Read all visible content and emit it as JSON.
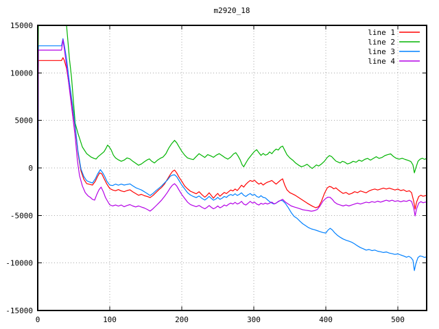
{
  "chart_data": {
    "type": "line",
    "title": "m2920_18",
    "xlabel": "",
    "ylabel": "",
    "xlim": [
      0,
      540
    ],
    "ylim": [
      -15000,
      15000
    ],
    "x_ticks": [
      0,
      100,
      200,
      300,
      400,
      500
    ],
    "y_ticks": [
      -15000,
      -10000,
      -5000,
      0,
      5000,
      10000,
      15000
    ],
    "grid": true,
    "legend_position": "top-right",
    "colors": {
      "background": "#ffffff",
      "axis": "#000000",
      "grid": "#a6a6a6",
      "text": "#000000"
    },
    "series": [
      {
        "name": "line 1",
        "color": "#ff0000",
        "points": [
          0,
          500,
          1,
          11300,
          33,
          11300,
          35,
          11600,
          37,
          11300,
          40,
          10500,
          44,
          8500,
          48,
          6500,
          52,
          4200,
          56,
          1500,
          60,
          -300,
          64,
          -1200,
          68,
          -1650,
          72,
          -1720,
          76,
          -1800,
          80,
          -1400,
          83,
          -900,
          86,
          -520,
          89,
          -620,
          92,
          -1100,
          96,
          -1700,
          100,
          -2160,
          104,
          -2320,
          108,
          -2400,
          112,
          -2280,
          116,
          -2420,
          120,
          -2500,
          124,
          -2380,
          128,
          -2300,
          132,
          -2520,
          136,
          -2700,
          140,
          -2880,
          144,
          -2780,
          148,
          -2920,
          152,
          -3000,
          156,
          -3120,
          160,
          -2900,
          164,
          -2600,
          168,
          -2300,
          172,
          -2050,
          176,
          -1700,
          180,
          -1200,
          184,
          -700,
          187,
          -380,
          190,
          -220,
          193,
          -520,
          196,
          -950,
          200,
          -1400,
          204,
          -1900,
          208,
          -2200,
          212,
          -2450,
          216,
          -2580,
          220,
          -2720,
          224,
          -2500,
          228,
          -2820,
          232,
          -3080,
          235,
          -2880,
          238,
          -2620,
          241,
          -2900,
          244,
          -3180,
          247,
          -2900,
          250,
          -2680,
          253,
          -2980,
          256,
          -2780,
          259,
          -2580,
          262,
          -2700,
          265,
          -2500,
          268,
          -2320,
          271,
          -2420,
          274,
          -2220,
          277,
          -2380,
          280,
          -2120,
          283,
          -1820,
          286,
          -2020,
          289,
          -1720,
          292,
          -1500,
          295,
          -1320,
          298,
          -1420,
          301,
          -1300,
          304,
          -1520,
          307,
          -1700,
          310,
          -1580,
          313,
          -1800,
          316,
          -1620,
          319,
          -1500,
          322,
          -1420,
          325,
          -1320,
          328,
          -1520,
          331,
          -1700,
          334,
          -1500,
          337,
          -1300,
          340,
          -1150,
          343,
          -1800,
          346,
          -2300,
          350,
          -2600,
          354,
          -2750,
          358,
          -2900,
          362,
          -3100,
          366,
          -3300,
          370,
          -3500,
          374,
          -3700,
          378,
          -3880,
          382,
          -4050,
          386,
          -4180,
          390,
          -4080,
          394,
          -3500,
          398,
          -2700,
          402,
          -2100,
          405,
          -1950,
          408,
          -2020,
          411,
          -2200,
          414,
          -2100,
          417,
          -2300,
          420,
          -2480,
          424,
          -2680,
          428,
          -2580,
          432,
          -2780,
          436,
          -2680,
          440,
          -2500,
          444,
          -2600,
          448,
          -2420,
          452,
          -2520,
          456,
          -2620,
          460,
          -2420,
          464,
          -2300,
          468,
          -2220,
          472,
          -2320,
          476,
          -2220,
          480,
          -2120,
          484,
          -2220,
          488,
          -2120,
          492,
          -2220,
          496,
          -2320,
          500,
          -2220,
          504,
          -2380,
          508,
          -2300,
          512,
          -2480,
          516,
          -2400,
          519,
          -2600,
          522,
          -3500,
          524,
          -4330,
          526,
          -3600,
          529,
          -3000,
          532,
          -2880,
          535,
          -2980,
          538,
          -2920,
          540,
          -2900
        ]
      },
      {
        "name": "line 2",
        "color": "#00b400",
        "points": [
          0,
          4500,
          1,
          15400,
          36,
          15400,
          40,
          15000,
          44,
          11500,
          47,
          9500,
          52,
          4700,
          56,
          3600,
          62,
          2200,
          68,
          1500,
          74,
          1150,
          78,
          1000,
          81,
          940,
          84,
          1200,
          88,
          1450,
          92,
          1700,
          95,
          2100,
          97,
          2400,
          99,
          2250,
          102,
          1900,
          105,
          1350,
          108,
          1050,
          112,
          850,
          116,
          700,
          120,
          820,
          124,
          1050,
          128,
          950,
          132,
          700,
          136,
          500,
          140,
          280,
          144,
          420,
          148,
          650,
          152,
          850,
          155,
          950,
          158,
          720,
          162,
          520,
          166,
          800,
          170,
          1000,
          174,
          1150,
          178,
          1500,
          182,
          2100,
          186,
          2550,
          190,
          2900,
          193,
          2650,
          196,
          2250,
          200,
          1750,
          204,
          1350,
          208,
          1050,
          212,
          950,
          216,
          880,
          220,
          1200,
          224,
          1500,
          228,
          1300,
          232,
          1100,
          236,
          1400,
          240,
          1280,
          244,
          1120,
          248,
          1350,
          252,
          1500,
          256,
          1300,
          260,
          1080,
          264,
          920,
          268,
          1150,
          272,
          1480,
          275,
          1600,
          278,
          1280,
          281,
          850,
          284,
          300,
          286,
          120,
          289,
          520,
          292,
          900,
          295,
          1200,
          298,
          1480,
          301,
          1750,
          304,
          1920,
          307,
          1600,
          310,
          1320,
          313,
          1520,
          316,
          1350,
          319,
          1430,
          322,
          1680,
          325,
          1500,
          328,
          1780,
          331,
          1980,
          334,
          1880,
          337,
          2180,
          340,
          2300,
          343,
          1850,
          346,
          1400,
          350,
          1050,
          354,
          820,
          358,
          520,
          362,
          300,
          366,
          120,
          370,
          220,
          374,
          380,
          378,
          120,
          381,
          -60,
          384,
          120,
          387,
          320,
          390,
          200,
          394,
          420,
          398,
          700,
          402,
          1100,
          405,
          1300,
          408,
          1200,
          411,
          950,
          414,
          720,
          417,
          620,
          420,
          520,
          423,
          700,
          426,
          620,
          430,
          420,
          434,
          520,
          438,
          700,
          442,
          600,
          446,
          820,
          450,
          700,
          454,
          900,
          458,
          1000,
          462,
          820,
          466,
          1000,
          470,
          1180,
          474,
          1000,
          478,
          1100,
          482,
          1300,
          486,
          1400,
          490,
          1480,
          494,
          1200,
          498,
          1000,
          502,
          920,
          506,
          1020,
          510,
          900,
          514,
          800,
          518,
          680,
          521,
          320,
          523,
          -520,
          525,
          20,
          528,
          700,
          531,
          920,
          534,
          1020,
          537,
          900,
          540,
          1000
        ]
      },
      {
        "name": "line 3",
        "color": "#0080ff",
        "points": [
          0,
          -15000,
          1,
          12850,
          33,
          12850,
          35,
          13600,
          37,
          12900,
          40,
          11500,
          44,
          9000,
          48,
          6800,
          52,
          4400,
          56,
          1700,
          60,
          -100,
          64,
          -900,
          68,
          -1350,
          72,
          -1480,
          76,
          -1590,
          80,
          -1150,
          83,
          -650,
          87,
          -180,
          90,
          -480,
          93,
          -900,
          96,
          -1400,
          100,
          -1800,
          104,
          -1850,
          108,
          -1700,
          112,
          -1820,
          116,
          -1700,
          120,
          -1800,
          124,
          -1740,
          128,
          -1680,
          132,
          -1880,
          136,
          -2080,
          140,
          -2200,
          144,
          -2320,
          148,
          -2500,
          152,
          -2700,
          156,
          -2900,
          160,
          -2680,
          164,
          -2400,
          168,
          -2150,
          172,
          -1900,
          176,
          -1580,
          180,
          -1280,
          184,
          -880,
          187,
          -760,
          190,
          -720,
          193,
          -920,
          196,
          -1300,
          200,
          -1800,
          204,
          -2200,
          208,
          -2600,
          212,
          -2850,
          216,
          -3000,
          220,
          -3120,
          224,
          -2950,
          228,
          -3200,
          232,
          -3380,
          235,
          -3200,
          238,
          -3000,
          241,
          -3200,
          244,
          -3400,
          247,
          -3280,
          250,
          -3100,
          253,
          -3300,
          256,
          -3180,
          259,
          -3000,
          262,
          -3100,
          265,
          -2900,
          268,
          -2800,
          271,
          -2900,
          274,
          -2720,
          277,
          -2900,
          280,
          -2780,
          283,
          -2620,
          286,
          -2880,
          289,
          -3000,
          292,
          -2820,
          295,
          -2700,
          298,
          -2880,
          301,
          -2780,
          304,
          -3000,
          307,
          -3100,
          310,
          -2920,
          313,
          -3100,
          316,
          -3150,
          319,
          -3350,
          322,
          -3550,
          325,
          -3700,
          328,
          -3800,
          331,
          -3700,
          334,
          -3550,
          337,
          -3420,
          340,
          -3450,
          344,
          -3750,
          348,
          -4200,
          352,
          -4700,
          356,
          -5100,
          360,
          -5300,
          364,
          -5600,
          368,
          -5880,
          372,
          -6080,
          376,
          -6280,
          380,
          -6420,
          384,
          -6500,
          388,
          -6600,
          392,
          -6700,
          396,
          -6800,
          400,
          -6850,
          403,
          -6550,
          406,
          -6350,
          409,
          -6520,
          412,
          -6800,
          416,
          -7080,
          420,
          -7300,
          424,
          -7480,
          428,
          -7600,
          432,
          -7700,
          436,
          -7820,
          440,
          -8000,
          444,
          -8200,
          448,
          -8380,
          452,
          -8500,
          456,
          -8650,
          460,
          -8580,
          464,
          -8700,
          468,
          -8640,
          472,
          -8760,
          476,
          -8820,
          480,
          -8900,
          484,
          -8840,
          488,
          -8960,
          492,
          -9020,
          496,
          -9100,
          500,
          -9040,
          504,
          -9160,
          508,
          -9260,
          512,
          -9400,
          515,
          -9300,
          518,
          -9420,
          521,
          -9700,
          523,
          -10800,
          525,
          -10050,
          528,
          -9420,
          531,
          -9260,
          534,
          -9320,
          537,
          -9420,
          540,
          -9350
        ]
      },
      {
        "name": "line 4",
        "color": "#b400e6",
        "points": [
          0,
          -7200,
          1,
          12400,
          33,
          12400,
          35,
          13500,
          37,
          12500,
          40,
          10800,
          44,
          8300,
          48,
          5800,
          52,
          3300,
          55,
          800,
          58,
          -800,
          62,
          -1900,
          66,
          -2600,
          70,
          -2950,
          73,
          -3100,
          76,
          -3300,
          79,
          -3390,
          82,
          -2800,
          85,
          -2300,
          88,
          -2020,
          91,
          -2500,
          94,
          -3100,
          97,
          -3500,
          100,
          -3880,
          104,
          -4000,
          108,
          -3900,
          112,
          -4020,
          116,
          -3900,
          120,
          -4080,
          124,
          -3950,
          128,
          -3860,
          132,
          -4000,
          136,
          -4100,
          140,
          -4000,
          144,
          -4120,
          148,
          -4220,
          152,
          -4360,
          156,
          -4540,
          160,
          -4300,
          164,
          -4000,
          168,
          -3700,
          172,
          -3380,
          176,
          -3000,
          180,
          -2580,
          184,
          -2100,
          187,
          -1820,
          190,
          -1660,
          193,
          -1900,
          196,
          -2300,
          200,
          -2800,
          204,
          -3200,
          208,
          -3600,
          212,
          -3850,
          216,
          -3970,
          220,
          -4080,
          224,
          -3950,
          228,
          -4150,
          232,
          -4300,
          235,
          -4150,
          238,
          -3960,
          241,
          -4150,
          244,
          -4300,
          247,
          -4180,
          250,
          -4000,
          253,
          -4200,
          256,
          -4080,
          259,
          -3900,
          262,
          -4000,
          265,
          -3820,
          268,
          -3700,
          271,
          -3800,
          274,
          -3620,
          277,
          -3800,
          280,
          -3700,
          283,
          -3520,
          286,
          -3800,
          289,
          -3900,
          292,
          -3720,
          295,
          -3520,
          298,
          -3700,
          301,
          -3600,
          304,
          -3800,
          307,
          -3900,
          310,
          -3720,
          313,
          -3820,
          316,
          -3700,
          319,
          -3800,
          322,
          -3700,
          325,
          -3600,
          328,
          -3780,
          331,
          -3700,
          334,
          -3520,
          337,
          -3420,
          340,
          -3300,
          344,
          -3600,
          348,
          -3800,
          352,
          -4000,
          356,
          -4100,
          360,
          -4200,
          364,
          -4300,
          368,
          -4400,
          372,
          -4450,
          376,
          -4500,
          380,
          -4550,
          384,
          -4500,
          388,
          -4380,
          392,
          -4000,
          396,
          -3500,
          400,
          -3200,
          403,
          -3080,
          406,
          -3100,
          409,
          -3300,
          412,
          -3600,
          416,
          -3800,
          420,
          -3900,
          424,
          -4000,
          428,
          -3900,
          432,
          -4000,
          436,
          -3900,
          440,
          -3800,
          444,
          -3700,
          448,
          -3800,
          452,
          -3700,
          456,
          -3600,
          460,
          -3660,
          464,
          -3550,
          468,
          -3620,
          472,
          -3500,
          476,
          -3600,
          480,
          -3500,
          484,
          -3400,
          488,
          -3500,
          492,
          -3400,
          496,
          -3520,
          500,
          -3450,
          504,
          -3560,
          508,
          -3460,
          512,
          -3520,
          516,
          -3400,
          519,
          -3520,
          522,
          -4200,
          524,
          -5050,
          526,
          -4300,
          529,
          -3700,
          532,
          -3550,
          535,
          -3660,
          538,
          -3600,
          540,
          -3600
        ]
      }
    ]
  }
}
